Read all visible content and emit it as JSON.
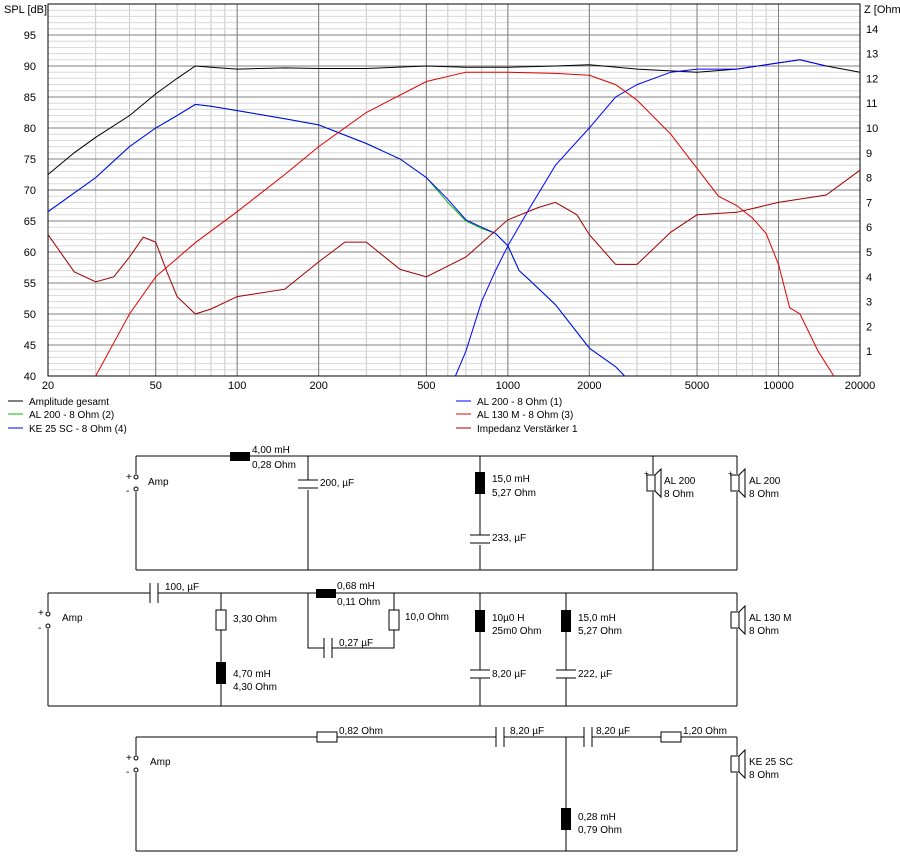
{
  "chart_data": {
    "type": "line",
    "ylabel_left": "SPL [dB]",
    "ylabel_right": "Z [Ohm",
    "x_scale": "log",
    "xlim": [
      20,
      20000
    ],
    "ylim_left": [
      40,
      100
    ],
    "ylim_right": [
      0,
      15
    ],
    "grid": true,
    "x_ticks": [
      20,
      50,
      100,
      200,
      500,
      1000,
      2000,
      5000,
      10000,
      20000
    ],
    "x_tick_labels": [
      "20",
      "50",
      "100",
      "200",
      "500",
      "1000",
      "2000",
      "5000",
      "10000",
      "20000"
    ],
    "y_left_ticks": [
      40,
      45,
      50,
      55,
      60,
      65,
      70,
      75,
      80,
      85,
      90,
      95
    ],
    "y_left_tick_labels": [
      "40",
      "45",
      "50",
      "55",
      "60",
      "65",
      "70",
      "75",
      "80",
      "85",
      "90",
      "95"
    ],
    "y_right_ticks": [
      1,
      2,
      3,
      4,
      5,
      6,
      7,
      8,
      9,
      10,
      11,
      12,
      13,
      14
    ],
    "y_right_tick_labels": [
      "1",
      "2",
      "3",
      "4",
      "5",
      "6",
      "7",
      "8",
      "9",
      "10",
      "11",
      "12",
      "13",
      "14"
    ],
    "legend": [
      {
        "label": "Amplitude gesamt",
        "color": "#000000"
      },
      {
        "label": "AL 200 - 8 Ohm (1)",
        "color": "#0000ff"
      },
      {
        "label": "AL 200 - 8 Ohm (2)",
        "color": "#00c000"
      },
      {
        "label": "AL 130 M - 8 Ohm (3)",
        "color": "#e00000"
      },
      {
        "label": "KE 25 SC - 8 Ohm    (4)",
        "color": "#0000ff"
      },
      {
        "label": "Impedanz Verstärker 1",
        "color": "#a00000"
      }
    ],
    "series": [
      {
        "name": "Amplitude gesamt",
        "color": "#000000",
        "axis": "left",
        "x": [
          20,
          25,
          30,
          40,
          50,
          60,
          70,
          80,
          100,
          150,
          200,
          300,
          500,
          700,
          1000,
          1500,
          2000,
          3000,
          5000,
          7000,
          10000,
          12000,
          15000,
          20000
        ],
        "y": [
          72.5,
          76,
          78.5,
          82,
          85.5,
          88,
          90,
          89.8,
          89.5,
          89.7,
          89.6,
          89.6,
          90,
          89.8,
          89.8,
          90,
          90.2,
          89.5,
          89,
          89.5,
          90.5,
          91,
          90,
          89
        ]
      },
      {
        "name": "AL 200 - 8 Ohm (2)",
        "color": "#00c000",
        "axis": "left",
        "x": [
          20,
          30,
          40,
          50,
          60,
          70,
          80,
          100,
          150,
          200,
          300,
          400,
          500,
          600,
          700,
          800,
          900,
          1000,
          1100,
          1200,
          1500,
          2000,
          2500,
          2700
        ],
        "y": [
          66.5,
          72,
          77,
          80,
          82,
          83.8,
          83.5,
          82.8,
          81.5,
          80.5,
          77.5,
          75,
          72,
          68,
          65,
          63.8,
          63,
          61,
          57,
          55.5,
          51.5,
          44.5,
          41.5,
          40
        ]
      },
      {
        "name": "KE 25 SC - 8 Ohm    (4)",
        "color": "#0000ff",
        "axis": "left",
        "x": [
          20,
          30,
          40,
          50,
          60,
          70,
          80,
          100,
          150,
          200,
          300,
          400,
          500,
          600,
          700,
          800,
          900,
          1000,
          1100,
          1200,
          1500,
          2000,
          2500,
          2700
        ],
        "y": [
          66.5,
          72,
          77,
          80,
          82,
          83.8,
          83.5,
          82.8,
          81.5,
          80.5,
          77.5,
          75,
          72,
          68.5,
          65.2,
          64,
          63,
          61,
          57,
          55.5,
          51.5,
          44.5,
          41.5,
          40
        ]
      },
      {
        "name": "AL 200 - 8 Ohm (1)",
        "color": "#0000ff",
        "axis": "left",
        "x": [
          640,
          700,
          800,
          900,
          1000,
          1200,
          1500,
          2000,
          2500,
          3000,
          4000,
          5000,
          7000,
          10000,
          12000,
          15000
        ],
        "y": [
          40,
          44,
          52,
          57,
          61,
          67,
          74,
          80,
          85,
          87,
          89,
          89.5,
          89.5,
          90.5,
          91,
          90
        ]
      },
      {
        "name": "AL 130 M - 8 Ohm (3)",
        "color": "#e00000",
        "axis": "left",
        "x": [
          30,
          40,
          50,
          70,
          100,
          150,
          200,
          300,
          500,
          700,
          1000,
          1500,
          2000,
          2500,
          3000,
          4000,
          5000,
          6000,
          7000,
          8000,
          9000,
          10000,
          11000,
          12000,
          14000,
          16000
        ],
        "y": [
          40,
          50,
          56,
          61.5,
          66.5,
          72.5,
          77,
          82.5,
          87.5,
          89,
          89,
          88.8,
          88.5,
          87,
          84.5,
          79,
          73.5,
          69,
          67.5,
          65.5,
          63,
          58,
          51,
          50,
          44,
          40
        ]
      },
      {
        "name": "Impedanz Verstärker 1",
        "color": "#a00000",
        "axis": "right",
        "x": [
          20,
          25,
          30,
          35,
          40,
          45,
          50,
          55,
          60,
          70,
          80,
          100,
          150,
          200,
          250,
          300,
          400,
          500,
          700,
          1000,
          1300,
          1500,
          1800,
          2000,
          2500,
          3000,
          4000,
          5000,
          7000,
          10000,
          15000,
          20000
        ],
        "y": [
          5.7,
          4.2,
          3.8,
          4,
          4.8,
          5.6,
          5.4,
          4.2,
          3.2,
          2.5,
          2.7,
          3.2,
          3.5,
          4.6,
          5.4,
          5.4,
          4.3,
          4,
          4.8,
          6.3,
          6.8,
          7,
          6.5,
          5.7,
          4.5,
          4.5,
          5.8,
          6.5,
          6.6,
          7,
          7.3,
          8.3
        ]
      }
    ]
  },
  "schematic": {
    "section1": {
      "source_label": "Amp",
      "source_plus": "+",
      "source_minus": "-",
      "L1_value": "4,00 mH",
      "L1_res": "0,28 Ohm",
      "C1_value": "200, µF",
      "L2_value": "15,0 mH",
      "L2_res": "5,27 Ohm",
      "C2_value": "233, µF",
      "spk1_label": "AL 200",
      "spk1_imp": "8 Ohm",
      "spk2_label": "AL 200",
      "spk2_imp": "8 Ohm"
    },
    "section2": {
      "source_label": "Amp",
      "source_plus": "+",
      "source_minus": "-",
      "C1_value": "100, µF",
      "R1_value": "3,30 Ohm",
      "L1_value": "4,70 mH",
      "L1_res": "4,30 Ohm",
      "L2_value": "0,68 mH",
      "L2_res": "0,11 Ohm",
      "C2_value": "0,27 µF",
      "R2_value": "10,0 Ohm",
      "L3_value": "10µ0 H",
      "L3_res": "25m0 Ohm",
      "C3_value": "8,20 µF",
      "L4_value": "15,0 mH",
      "L4_res": "5,27 Ohm",
      "C4_value": "222, µF",
      "spk_label": "AL 130 M",
      "spk_imp": "8 Ohm"
    },
    "section3": {
      "source_label": "Amp",
      "source_plus": "+",
      "source_minus": "-",
      "R1_value": "0,82 Ohm",
      "C1_value": "8,20 µF",
      "C2_value": "8,20 µF",
      "R2_value": "1,20 Ohm",
      "L1_value": "0,28 mH",
      "L1_res": "0,79 Ohm",
      "spk_label": "KE 25 SC",
      "spk_imp": "8 Ohm"
    }
  }
}
